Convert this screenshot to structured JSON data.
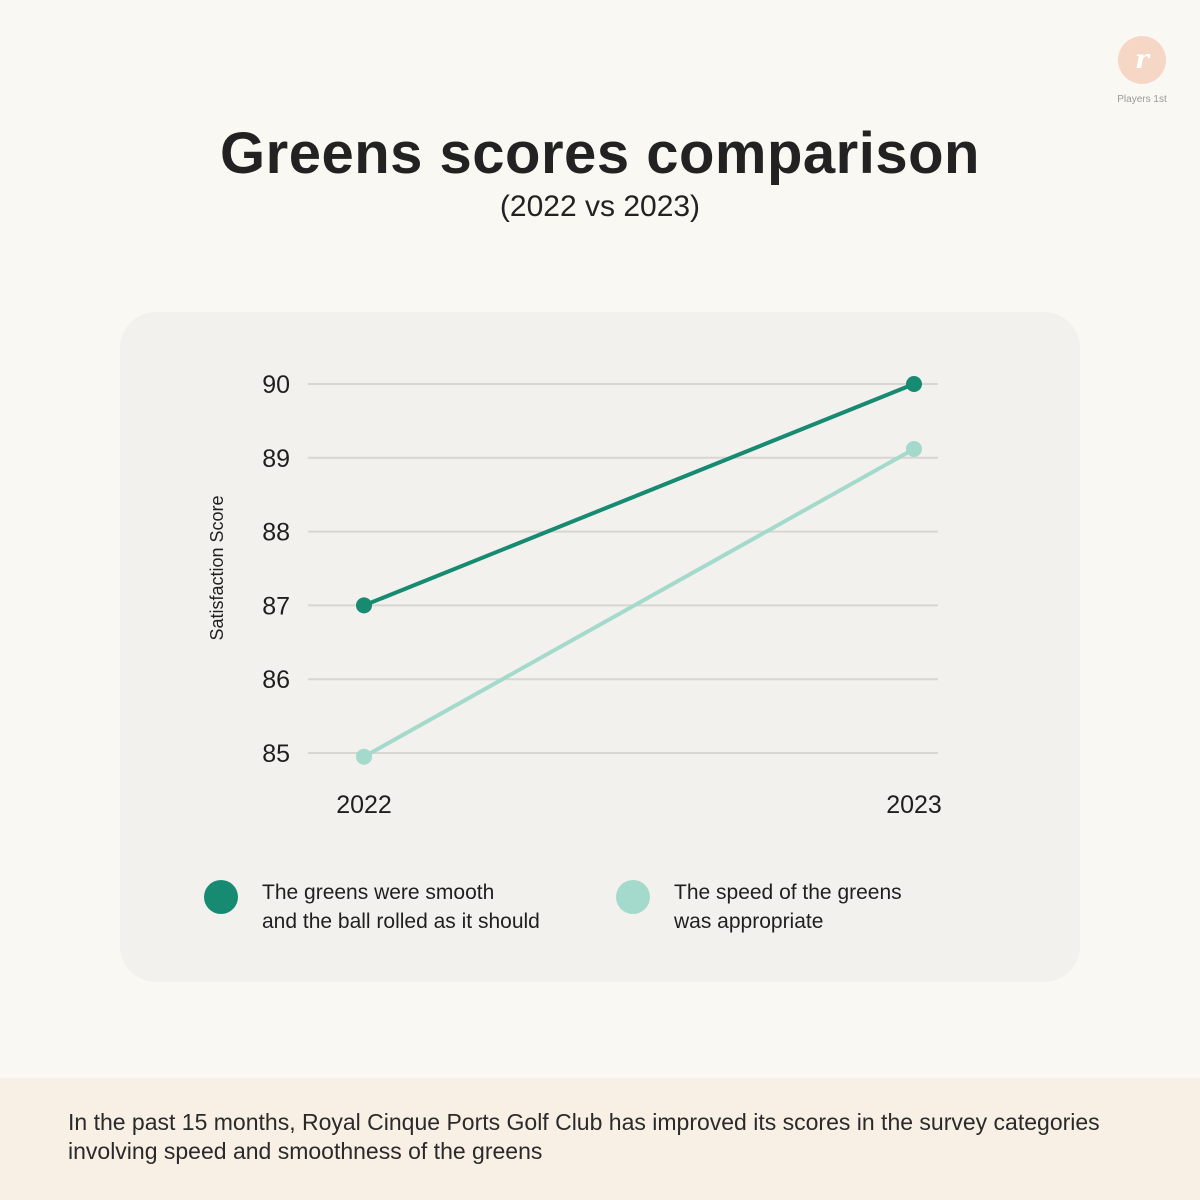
{
  "brand": {
    "logo_mark": "r",
    "name": "Players 1st",
    "logo_color": "#f6d7c6"
  },
  "header": {
    "title": "Greens scores comparison",
    "subtitle": "(2022 vs 2023)"
  },
  "chart_data": {
    "type": "line",
    "title": "Greens scores comparison",
    "subtitle": "(2022 vs 2023)",
    "xlabel": "",
    "ylabel": "Satisfaction Score",
    "categories": [
      "2022",
      "2023"
    ],
    "ylim": [
      85,
      90
    ],
    "yticks": [
      90,
      89,
      88,
      87,
      86,
      85
    ],
    "grid": true,
    "legend_position": "bottom",
    "series": [
      {
        "name": "The greens were smooth\nand the ball rolled as it should",
        "values": [
          87.0,
          90.0
        ],
        "color": "#178a72"
      },
      {
        "name": "The speed of the greens\nwas appropriate",
        "values": [
          84.95,
          89.12
        ],
        "color": "#a3dacc"
      }
    ]
  },
  "footer": {
    "text": "In the past 15 months, Royal Cinque Ports Golf Club has improved its scores in the survey categories involving speed and smoothness of the greens"
  }
}
